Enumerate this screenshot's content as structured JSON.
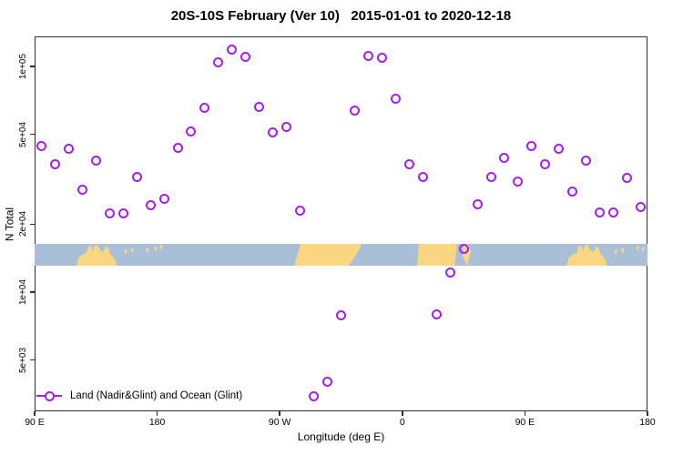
{
  "title": "20S-10S February (Ver 10)   2015-01-01 to 2020-12-18",
  "colors": {
    "marker": "#a020f0",
    "ocean": "#a9bfd8",
    "land": "#fbd682",
    "axis": "#2e2e2e",
    "text": "#000000"
  },
  "chart_data": {
    "type": "scatter",
    "title": "20S-10S February (Ver 10)   2015-01-01 to 2020-12-18",
    "xlabel": "Longitude (deg E)",
    "ylabel": "N Total",
    "grid": false,
    "legend_position": "bottom-left",
    "x_axis": {
      "min": 90,
      "max": 540,
      "ticks": [
        90,
        180,
        270,
        360,
        450,
        540
      ],
      "tick_labels": [
        "90 E",
        "180",
        "90 W",
        "0",
        "90 E",
        "180"
      ]
    },
    "y_axis": {
      "scale": "log10",
      "min": 2960,
      "max": 136000,
      "ticks": [
        5000,
        10000,
        20000,
        50000,
        100000
      ],
      "tick_labels": [
        "5e+03",
        "1e+04",
        "2e+04",
        "5e+04",
        "1e+05"
      ]
    },
    "series": [
      {
        "name": "Land (Nadir&Glint) and Ocean (Glint)",
        "marker": "open-circle",
        "color": "#a020f0",
        "x": [
          95,
          105,
          115,
          125,
          135,
          145,
          155,
          165,
          175,
          185,
          195,
          205,
          215,
          225,
          235,
          245,
          255,
          265,
          275,
          285,
          295,
          305,
          315,
          325,
          335,
          345,
          355,
          365,
          375,
          385,
          395,
          405,
          415,
          425,
          435,
          445,
          455,
          465,
          475,
          485,
          495,
          505,
          515,
          525,
          535
        ],
        "y": [
          44200,
          36700,
          43000,
          28300,
          38100,
          22400,
          22400,
          32500,
          24200,
          25800,
          43400,
          51700,
          65800,
          104000,
          119000,
          110000,
          66500,
          51200,
          54200,
          22900,
          3440,
          3990,
          7860,
          64000,
          111000,
          109000,
          72300,
          37000,
          32500,
          7930,
          12200,
          15600,
          24600,
          32500,
          39500,
          30800,
          44600,
          36700,
          43000,
          28000,
          38100,
          22600,
          22600,
          32200,
          23900
        ]
      }
    ],
    "legend": {
      "label": "Land (Nadir&Glint) and Ocean (Glint)"
    },
    "map_strip": {
      "description": "coastline reference band, ocean vs land vs longitude",
      "top_value": 16400,
      "bottom_value": 13100,
      "land_polygons": [
        [
          [
            120.8,
            1
          ],
          [
            122.1,
            0.62
          ],
          [
            124.8,
            0.5
          ],
          [
            128.1,
            0.42
          ],
          [
            129.5,
            0.12
          ],
          [
            131.5,
            0.08
          ],
          [
            132.8,
            0.33
          ],
          [
            134.1,
            0.08
          ],
          [
            136.1,
            0.04
          ],
          [
            138.1,
            0.29
          ],
          [
            140.2,
            0.37
          ],
          [
            142.2,
            0.12
          ],
          [
            144.2,
            0.17
          ],
          [
            145.5,
            0.46
          ],
          [
            147.5,
            0.58
          ],
          [
            149.5,
            0.75
          ],
          [
            150.2,
            1
          ]
        ],
        [
          [
            285.2,
            0
          ],
          [
            330.1,
            0
          ],
          [
            327.4,
            0.38
          ],
          [
            320.7,
            1
          ],
          [
            280.6,
            1
          ]
        ],
        [
          [
            372.2,
            0
          ],
          [
            400.3,
            0
          ],
          [
            398.3,
            1
          ],
          [
            370.8,
            1
          ]
        ],
        [
          [
            405,
            0
          ],
          [
            408.3,
            0
          ],
          [
            410.3,
            0.33
          ],
          [
            407.6,
            1
          ],
          [
            404.3,
            0.58
          ]
        ],
        [
          [
            480.8,
            1
          ],
          [
            482.1,
            0.62
          ],
          [
            484.8,
            0.5
          ],
          [
            488.1,
            0.42
          ],
          [
            489.5,
            0.12
          ],
          [
            491.5,
            0.08
          ],
          [
            492.8,
            0.33
          ],
          [
            494.1,
            0.08
          ],
          [
            496.1,
            0.04
          ],
          [
            498.1,
            0.29
          ],
          [
            500.2,
            0.37
          ],
          [
            502.2,
            0.12
          ],
          [
            504.2,
            0.17
          ],
          [
            505.5,
            0.46
          ],
          [
            507.5,
            0.58
          ],
          [
            509.5,
            0.75
          ],
          [
            510.2,
            1
          ]
        ]
      ],
      "islands": [
        [
          156,
          0.25
        ],
        [
          161,
          0.2
        ],
        [
          172,
          0.2
        ],
        [
          178,
          0.1
        ],
        [
          182,
          0.05
        ],
        [
          516,
          0.25
        ],
        [
          521,
          0.2
        ],
        [
          532,
          0.1
        ],
        [
          536,
          0.15
        ]
      ]
    }
  }
}
